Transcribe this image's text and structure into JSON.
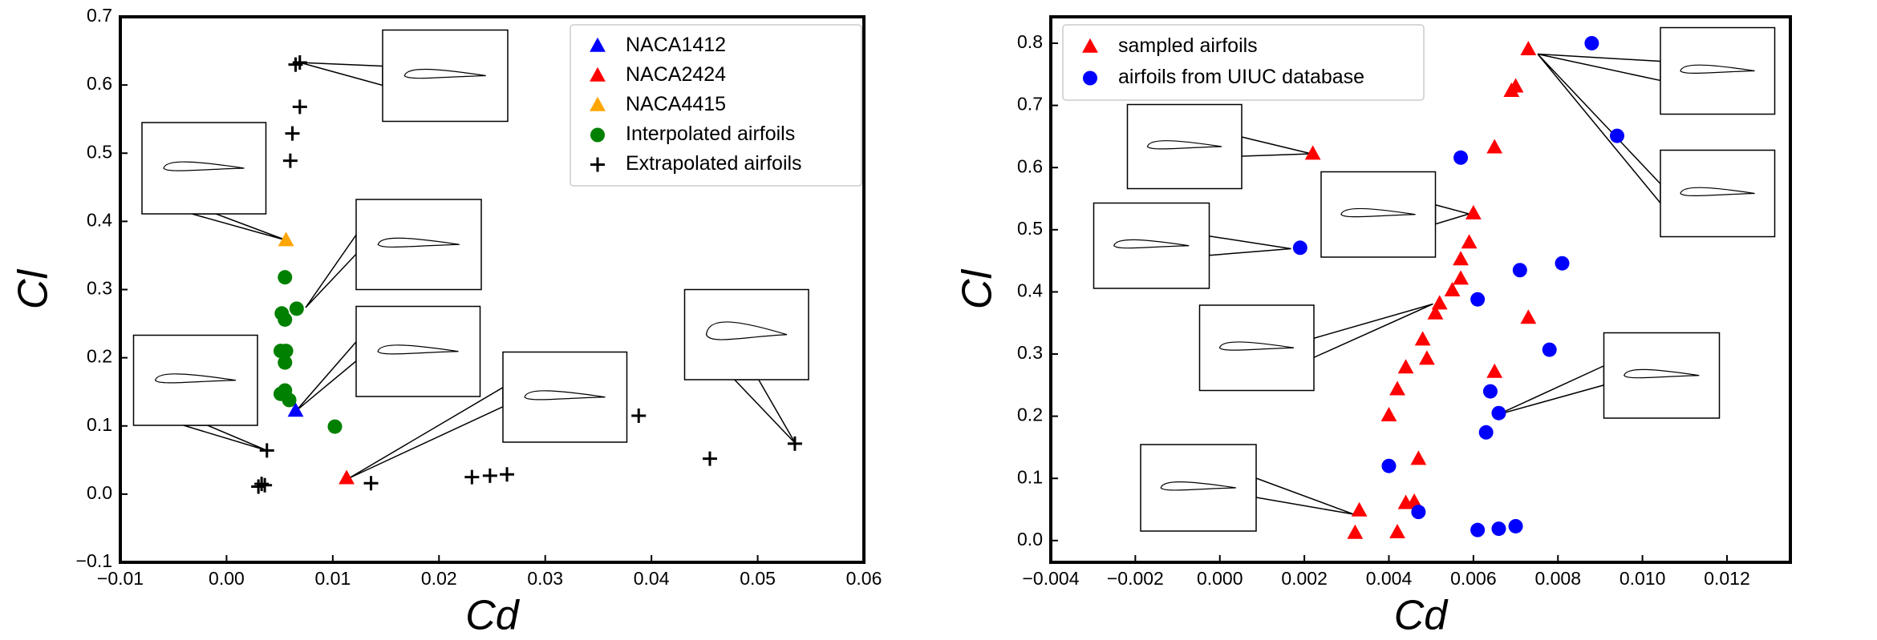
{
  "chart_data": [
    {
      "type": "scatter",
      "xlabel": "Cd",
      "ylabel": "Cl",
      "legend": "upper right",
      "xlim": [
        -0.01,
        0.06
      ],
      "ylim": [
        -0.1,
        0.7
      ],
      "xticks": [
        {
          "value": -0.01,
          "label": "−0.01"
        },
        {
          "value": 0,
          "label": "0.00"
        },
        0.01,
        0.02,
        0.03,
        0.04,
        0.05,
        0.06
      ],
      "yticks": [
        {
          "value": -0.1,
          "label": "−0.1"
        },
        {
          "value": 0,
          "label": "0.0"
        },
        0.1,
        0.2,
        0.3,
        0.4,
        0.5,
        0.6,
        0.7
      ],
      "series": [
        {
          "name": "NACA1412",
          "color": "#0000ff",
          "marker": "triangle",
          "x": [
            0.0065
          ],
          "values": [
            0.122
          ]
        },
        {
          "name": "NACA2424",
          "color": "#ff0000",
          "marker": "triangle",
          "x": [
            0.0113
          ],
          "values": [
            0.023
          ]
        },
        {
          "name": "NACA4415",
          "color": "#ffa500",
          "marker": "triangle",
          "x": [
            0.0056
          ],
          "values": [
            0.372
          ]
        },
        {
          "name": "Interpolated airfoils",
          "color": "#008000",
          "marker": "circle",
          "x": [
            0.0055,
            0.0066,
            0.0052,
            0.0055,
            0.0051,
            0.0056,
            0.0055,
            0.0055,
            0.0051,
            0.0059,
            0.0102
          ],
          "values": [
            0.318,
            0.272,
            0.265,
            0.256,
            0.21,
            0.21,
            0.193,
            0.152,
            0.147,
            0.138,
            0.099
          ]
        },
        {
          "name": "Extrapolated airfoils",
          "color": "#000000",
          "marker": "plus",
          "x": [
            0.0069,
            0.0065,
            0.0069,
            0.0062,
            0.006,
            0.0038,
            0.0033,
            0.0036,
            0.003,
            0.0136,
            0.0231,
            0.0248,
            0.0264,
            0.0388,
            0.0455,
            0.0535
          ],
          "values": [
            0.633,
            0.63,
            0.568,
            0.529,
            0.489,
            0.064,
            0.015,
            0.013,
            0.011,
            0.016,
            0.025,
            0.027,
            0.029,
            0.115,
            0.052,
            0.074
          ]
        }
      ]
    },
    {
      "type": "scatter",
      "xlabel": "Cd",
      "ylabel": "Cl",
      "legend": "upper left",
      "xlim": [
        -0.004,
        0.0135
      ],
      "ylim": [
        -0.035,
        0.8425
      ],
      "xticks": [
        {
          "value": -0.004,
          "label": "−0.004"
        },
        {
          "value": -0.002,
          "label": "−0.002"
        },
        {
          "value": 0,
          "label": "0.000"
        },
        0.002,
        0.004,
        0.006,
        0.008,
        {
          "value": 0.01,
          "label": "0.010"
        },
        0.012
      ],
      "yticks": [
        {
          "value": 0,
          "label": "0.0"
        },
        0.1,
        0.2,
        0.3,
        0.4,
        0.5,
        0.6,
        0.7,
        0.8
      ],
      "series": [
        {
          "name": "sampled airfoils",
          "color": "#ff0000",
          "marker": "triangle",
          "x": [
            0.0022,
            0.006,
            0.0059,
            0.0057,
            0.0057,
            0.0055,
            0.0052,
            0.0051,
            0.0048,
            0.0049,
            0.0044,
            0.0042,
            0.004,
            0.0047,
            0.0044,
            0.0046,
            0.0033,
            0.0032,
            0.0042,
            0.0065,
            0.0069,
            0.007,
            0.0073,
            0.0065,
            0.0073
          ],
          "values": [
            0.622,
            0.526,
            0.479,
            0.452,
            0.421,
            0.402,
            0.381,
            0.365,
            0.323,
            0.292,
            0.278,
            0.243,
            0.201,
            0.131,
            0.06,
            0.062,
            0.048,
            0.012,
            0.013,
            0.632,
            0.723,
            0.73,
            0.79,
            0.271,
            0.358
          ]
        },
        {
          "name": "airfoils from UIUC database",
          "color": "#0000ff",
          "marker": "circle",
          "x": [
            0.0088,
            0.0094,
            0.0057,
            0.0019,
            0.0061,
            0.0071,
            0.0081,
            0.0078,
            0.0064,
            0.0066,
            0.0063,
            0.004,
            0.0047,
            0.0061,
            0.0066,
            0.007
          ],
          "values": [
            0.8,
            0.651,
            0.616,
            0.471,
            0.388,
            0.435,
            0.446,
            0.307,
            0.24,
            0.205,
            0.174,
            0.12,
            0.046,
            0.017,
            0.019,
            0.023
          ]
        }
      ]
    }
  ]
}
